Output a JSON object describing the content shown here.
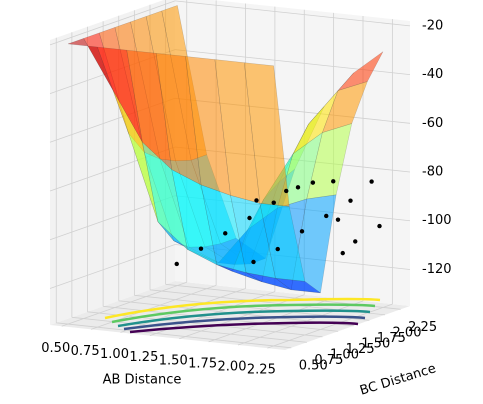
{
  "chart_data": {
    "type": "surface3d",
    "xlabel": "AB Distance",
    "ylabel": "BC Distance",
    "xlim": [
      0.4,
      2.4
    ],
    "ylim": [
      0.4,
      2.4
    ],
    "zlim": [
      -135,
      -18
    ],
    "xticks": [
      {
        "value": 0.5,
        "label": "0.50"
      },
      {
        "value": 0.75,
        "label": "0.75"
      },
      {
        "value": 1.0,
        "label": "1.00"
      },
      {
        "value": 1.25,
        "label": "1.25"
      },
      {
        "value": 1.5,
        "label": "1.50"
      },
      {
        "value": 1.75,
        "label": "1.75"
      },
      {
        "value": 2.0,
        "label": "2.00"
      },
      {
        "value": 2.25,
        "label": "2.25"
      }
    ],
    "yticks": [
      {
        "value": 0.5,
        "label": "0.50"
      },
      {
        "value": 0.75,
        "label": "0.75"
      },
      {
        "value": 1.0,
        "label": "1.00"
      },
      {
        "value": 1.25,
        "label": "1.25"
      },
      {
        "value": 1.5,
        "label": "1.50"
      },
      {
        "value": 1.75,
        "label": "1.75"
      },
      {
        "value": 2.0,
        "label": "2.00"
      },
      {
        "value": 2.25,
        "label": "2.25"
      }
    ],
    "zticks": [
      -120,
      -100,
      -80,
      -60,
      -40,
      -20
    ],
    "surface": {
      "x": [
        0.5,
        0.75,
        1.0,
        1.25,
        1.5,
        1.75,
        2.0,
        2.25
      ],
      "y": [
        0.5,
        0.75,
        1.0,
        1.25,
        1.5,
        1.75,
        2.0,
        2.25
      ],
      "z": [
        [
          -20,
          -20,
          -20,
          -20,
          -20,
          -20,
          -20,
          -20
        ],
        [
          -20,
          -40,
          -60,
          -70,
          -75,
          -78,
          -80,
          -80
        ],
        [
          -20,
          -60,
          -95,
          -105,
          -110,
          -112,
          -113,
          -113
        ],
        [
          -20,
          -70,
          -105,
          -110,
          -115,
          -118,
          -120,
          -120
        ],
        [
          -20,
          -75,
          -110,
          -115,
          -100,
          -90,
          -85,
          -82
        ],
        [
          -20,
          -78,
          -112,
          -118,
          -90,
          -70,
          -60,
          -55
        ],
        [
          -20,
          -80,
          -113,
          -120,
          -85,
          -60,
          -45,
          -40
        ],
        [
          -20,
          -80,
          -113,
          -120,
          -82,
          -55,
          -40,
          -30
        ]
      ],
      "alpha": 0.55
    },
    "scatter": {
      "color": "#000000",
      "x": [
        1.0,
        1.1,
        1.2,
        1.3,
        1.4,
        1.5,
        1.6,
        1.7,
        1.8,
        1.9,
        2.0,
        2.1,
        2.2,
        2.3,
        1.2,
        1.4,
        1.6,
        1.8,
        2.0,
        2.2
      ],
      "y": [
        1.3,
        1.5,
        1.7,
        1.9,
        2.1,
        2.3,
        1.4,
        1.6,
        1.8,
        2.0,
        2.2,
        2.35,
        1.9,
        2.1,
        2.2,
        2.3,
        2.35,
        2.3,
        2.0,
        1.7
      ],
      "z": [
        -115,
        -110,
        -105,
        -100,
        -95,
        -90,
        -112,
        -108,
        -102,
        -97,
        -92,
        -85,
        -105,
        -100,
        -96,
        -92,
        -88,
        -86,
        -98,
        -108
      ]
    }
  }
}
